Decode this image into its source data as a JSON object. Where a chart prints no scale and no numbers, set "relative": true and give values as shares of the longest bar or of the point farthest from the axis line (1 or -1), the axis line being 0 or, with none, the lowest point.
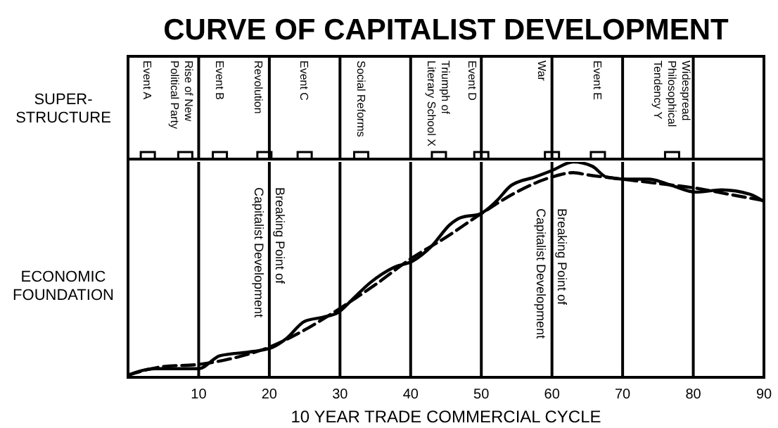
{
  "chart_data": {
    "type": "line",
    "title": "CURVE OF CAPITALIST DEVELOPMENT",
    "xlabel": "10 YEAR TRADE COMMERCIAL CYCLE",
    "relative": true,
    "xlim": [
      0,
      90
    ],
    "xticks": [
      10,
      20,
      30,
      40,
      50,
      60,
      70,
      80,
      90
    ],
    "grid": "x",
    "marker": "none",
    "series": [
      {
        "color": "#000000",
        "line_style": "solid",
        "x": [
          0,
          3.8,
          7.8,
          10,
          13,
          17.7,
          20.5,
          22.4,
          25,
          27.7,
          29.7,
          31.7,
          34.3,
          37.6,
          40.3,
          43,
          45.6,
          47,
          49.9,
          52.2,
          54.2,
          57.6,
          60,
          63,
          65.7,
          67.7,
          70.3,
          73.7,
          77,
          80.3,
          84,
          88,
          89.8
        ],
        "values": [
          0.01,
          0.04,
          0.04,
          0.04,
          0.1,
          0.12,
          0.14,
          0.18,
          0.26,
          0.28,
          0.3,
          0.36,
          0.44,
          0.51,
          0.54,
          0.61,
          0.71,
          0.74,
          0.76,
          0.82,
          0.89,
          0.93,
          0.96,
          1,
          0.98,
          0.93,
          0.92,
          0.92,
          0.89,
          0.86,
          0.87,
          0.85,
          0.82
        ]
      },
      {
        "color": "#000000",
        "line_style": "dashed",
        "x": [
          0,
          5,
          10,
          15,
          20,
          25,
          30,
          35,
          40,
          45,
          50,
          55,
          60,
          63,
          65,
          70,
          75,
          80,
          85,
          90
        ],
        "values": [
          0.01,
          0.05,
          0.06,
          0.09,
          0.14,
          0.22,
          0.32,
          0.43,
          0.55,
          0.65,
          0.76,
          0.86,
          0.93,
          0.95,
          0.94,
          0.92,
          0.9,
          0.88,
          0.85,
          0.82
        ]
      }
    ],
    "annotations": [
      "SUPER-STRUCTURE",
      "ECONOMIC FOUNDATION",
      "Breaking Point of Capitalist Development",
      "Breaking Point of Capitalist Development",
      "Event A",
      "Rise of New Political Party",
      "Event B",
      "Revolution",
      "Event C",
      "Social Reforms",
      "Triumph of Literary School X",
      "Event D",
      "War",
      "Event E",
      "Widespread Philosophical Tendency Y"
    ]
  }
}
